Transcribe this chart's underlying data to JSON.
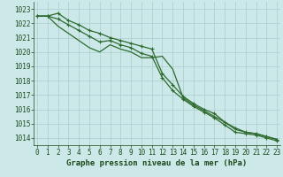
{
  "x": [
    0,
    1,
    2,
    3,
    4,
    5,
    6,
    7,
    8,
    9,
    10,
    11,
    12,
    13,
    14,
    15,
    16,
    17,
    18,
    19,
    20,
    21,
    22,
    23
  ],
  "line_top": [
    1022.5,
    1022.5,
    1022.7,
    1022.2,
    1021.9,
    1021.5,
    1021.3,
    1021.0,
    1020.8,
    1020.6,
    1020.4,
    1020.2,
    1018.5,
    1017.7,
    1016.9,
    1016.4,
    1016.0,
    1015.7,
    1015.1,
    1014.7,
    1014.4,
    1014.3,
    1014.1,
    1013.9
  ],
  "line_mid": [
    1022.5,
    1022.5,
    1022.3,
    1021.9,
    1021.5,
    1021.1,
    1020.7,
    1020.8,
    1020.5,
    1020.3,
    1019.9,
    1019.7,
    1018.2,
    1017.3,
    1016.7,
    1016.2,
    1015.8,
    1015.4,
    1014.9,
    1014.4,
    1014.3,
    1014.2,
    1014.0,
    1013.8
  ],
  "line_bot": [
    1022.5,
    1022.5,
    1021.8,
    1021.3,
    1020.8,
    1020.3,
    1020.0,
    1020.5,
    1020.2,
    1020.0,
    1019.6,
    1019.6,
    1019.7,
    1018.8,
    1016.8,
    1016.3,
    1015.9,
    1015.5,
    1015.1,
    1014.6,
    1014.4,
    1014.3,
    1014.1,
    1013.9
  ],
  "ylim": [
    1013.5,
    1023.5
  ],
  "yticks": [
    1014,
    1015,
    1016,
    1017,
    1018,
    1019,
    1020,
    1021,
    1022,
    1023
  ],
  "xticks": [
    0,
    1,
    2,
    3,
    4,
    5,
    6,
    7,
    8,
    9,
    10,
    11,
    12,
    13,
    14,
    15,
    16,
    17,
    18,
    19,
    20,
    21,
    22,
    23
  ],
  "xlabel": "Graphe pression niveau de la mer (hPa)",
  "line_color": "#2d6a2d",
  "bg_color": "#cce8e8",
  "grid_color": "#aacece",
  "label_color": "#1a4a1a",
  "markersize": 3,
  "linewidth": 0.9
}
